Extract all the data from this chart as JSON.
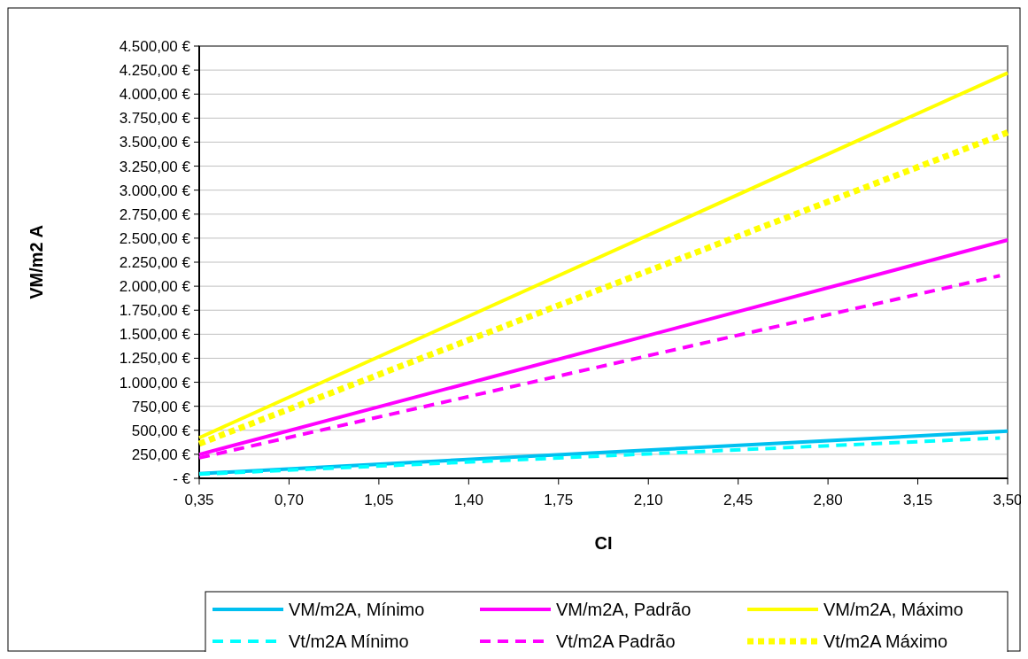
{
  "chart_data": {
    "type": "line",
    "xlabel": "CI",
    "ylabel": "VM/m2 A",
    "xlim": [
      0.35,
      3.5
    ],
    "xticks": [
      {
        "value": 0.35,
        "label": "0,35"
      },
      {
        "value": 0.7,
        "label": "0,70"
      },
      {
        "value": 1.05,
        "label": "1,05"
      },
      {
        "value": 1.4,
        "label": "1,40"
      },
      {
        "value": 1.75,
        "label": "1,75"
      },
      {
        "value": 2.1,
        "label": "2,10"
      },
      {
        "value": 2.45,
        "label": "2,45"
      },
      {
        "value": 2.8,
        "label": "2,80"
      },
      {
        "value": 3.15,
        "label": "3,15"
      },
      {
        "value": 3.5,
        "label": "3,50"
      }
    ],
    "ylim": [
      0,
      4500
    ],
    "yticks": [
      {
        "value": 0,
        "label": "-   €"
      },
      {
        "value": 250,
        "label": "250,00 €"
      },
      {
        "value": 500,
        "label": "500,00 €"
      },
      {
        "value": 750,
        "label": "750,00 €"
      },
      {
        "value": 1000,
        "label": "1.000,00 €"
      },
      {
        "value": 1250,
        "label": "1.250,00 €"
      },
      {
        "value": 1500,
        "label": "1.500,00 €"
      },
      {
        "value": 1750,
        "label": "1.750,00 €"
      },
      {
        "value": 2000,
        "label": "2.000,00 €"
      },
      {
        "value": 2250,
        "label": "2.250,00 €"
      },
      {
        "value": 2500,
        "label": "2.500,00 €"
      },
      {
        "value": 2750,
        "label": "2.750,00 €"
      },
      {
        "value": 3000,
        "label": "3.000,00 €"
      },
      {
        "value": 3250,
        "label": "3.250,00 €"
      },
      {
        "value": 3500,
        "label": "3.500,00 €"
      },
      {
        "value": 3750,
        "label": "3.750,00 €"
      },
      {
        "value": 4000,
        "label": "4.000,00 €"
      },
      {
        "value": 4250,
        "label": "4.250,00 €"
      },
      {
        "value": 4500,
        "label": "4.500,00 €"
      }
    ],
    "grid": "y",
    "legend": "bottom",
    "marker": "none",
    "series": [
      {
        "name": "VM/m2A, Mínimo",
        "color": "#00c0f0",
        "line_style": "solid",
        "x": [
          0.35,
          3.5
        ],
        "values": [
          49,
          490
        ]
      },
      {
        "name": "VM/m2A, Padrão",
        "color": "#ff00ff",
        "line_style": "solid",
        "x": [
          0.35,
          3.5
        ],
        "values": [
          248,
          2480
        ]
      },
      {
        "name": "VM/m2A, Máximo",
        "color": "#ffff00",
        "line_style": "solid",
        "x": [
          0.35,
          3.5
        ],
        "values": [
          422,
          4220
        ]
      },
      {
        "name": "Vt/m2A Mínimo",
        "color": "#00ffff",
        "line_style": "dashed",
        "x": [
          0.35,
          3.47
        ],
        "values": [
          43,
          420
        ]
      },
      {
        "name": "Vt/m2A Padrão",
        "color": "#ff00ff",
        "line_style": "dashed",
        "x": [
          0.35,
          3.47
        ],
        "values": [
          213,
          2110
        ]
      },
      {
        "name": "Vt/m2A Máximo",
        "color": "#ffff00",
        "line_style": "dotted",
        "x": [
          0.35,
          3.5
        ],
        "values": [
          360,
          3600
        ]
      }
    ]
  }
}
